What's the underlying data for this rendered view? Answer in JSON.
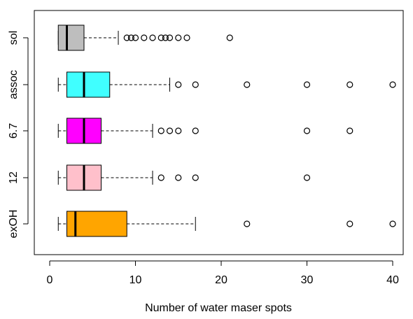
{
  "chart_data": {
    "type": "boxplot",
    "orientation": "horizontal",
    "title": "",
    "xlabel": "Number of water maser spots",
    "ylabel": "",
    "xlim": [
      -1.5,
      41.8
    ],
    "x_ticks": [
      0,
      10,
      20,
      30,
      40
    ],
    "x_tick_labels": [
      "0",
      "10",
      "20",
      "30",
      "40"
    ],
    "grid": false,
    "legend": "none",
    "groups": [
      {
        "label": "sol",
        "color": "#bebebe",
        "whisker_low": 1,
        "q1": 1,
        "median": 2,
        "q3": 4,
        "whisker_high": 8,
        "outliers": [
          9,
          9.5,
          10,
          11,
          12,
          13,
          13.5,
          14,
          15,
          16,
          21
        ]
      },
      {
        "label": "assoc",
        "color": "#40ffff",
        "whisker_low": 1,
        "q1": 2,
        "median": 4,
        "q3": 7,
        "whisker_high": 14,
        "outliers": [
          15,
          17,
          23,
          30,
          35,
          40
        ]
      },
      {
        "label": "6.7",
        "color": "#ff00ff",
        "whisker_low": 1,
        "q1": 2,
        "median": 4,
        "q3": 6,
        "whisker_high": 12,
        "outliers": [
          13,
          14,
          15,
          17,
          30,
          35
        ]
      },
      {
        "label": "12",
        "color": "#ffc0cb",
        "whisker_low": 1,
        "q1": 2,
        "median": 4,
        "q3": 6,
        "whisker_high": 12,
        "outliers": [
          13,
          15,
          17,
          30
        ]
      },
      {
        "label": "exOH",
        "color": "#ffa500",
        "whisker_low": 1,
        "q1": 2,
        "median": 3,
        "q3": 9,
        "whisker_high": 17,
        "outliers": [
          23,
          35,
          40
        ]
      }
    ]
  }
}
